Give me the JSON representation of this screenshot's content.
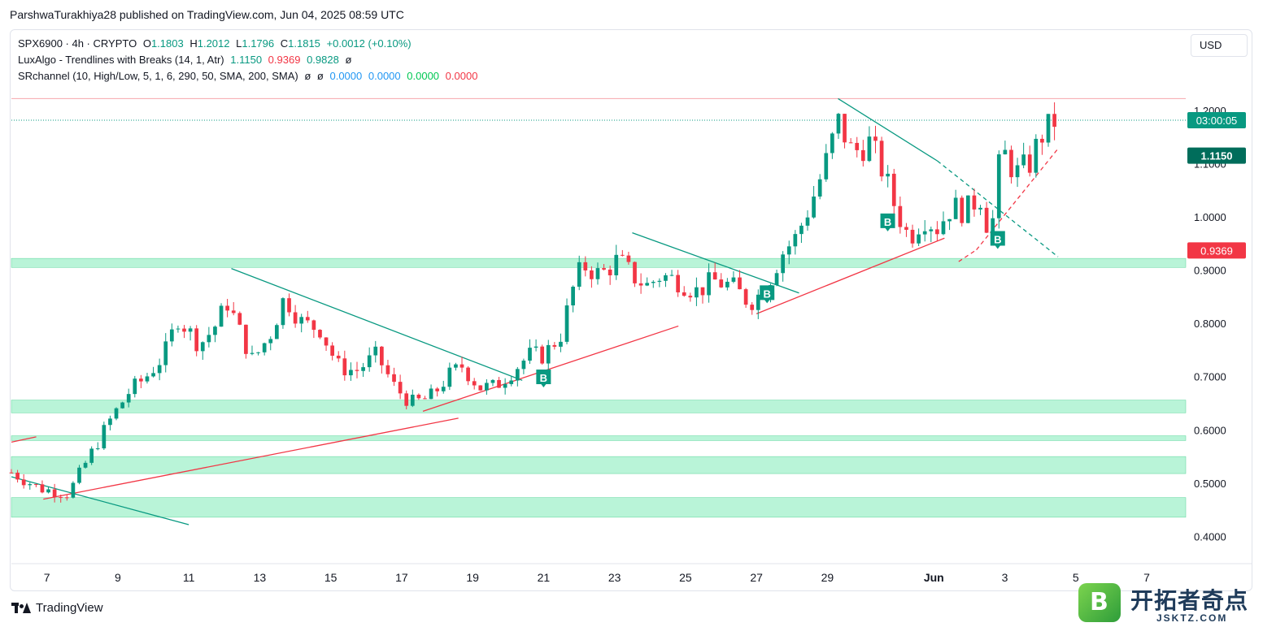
{
  "caption": "ParshwaTurakhiya28 published on TradingView.com, Jun 04, 2025 08:59 UTC",
  "legend": {
    "symbol": "SPX6900 · 4h · CRYPTO",
    "o_label": "O",
    "o": "1.1803",
    "h_label": "H",
    "h": "1.2012",
    "l_label": "L",
    "l": "1.1796",
    "c_label": "C",
    "c": "1.1815",
    "change": "+0.0012 (+0.10%)",
    "ind1_name": "LuxAlgo - Trendlines with Breaks (14, 1, Atr)",
    "ind1_v1": "1.1150",
    "ind1_v2": "0.9369",
    "ind1_v3": "0.9828",
    "ind1_v4": "ø",
    "ind2_name": "SRchannel (10, High/Low, 5, 1, 6, 290, 50, SMA, 200, SMA)",
    "ind2_v1": "ø",
    "ind2_v2": "ø",
    "ind2_v3": "0.0000",
    "ind2_v4": "0.0000",
    "ind2_v5": "0.0000",
    "ind2_v6": "0.0000"
  },
  "currency_button": "USD",
  "price_tags": {
    "countdown": "03:00:05",
    "upper_trendline": "1.1150",
    "lower_trendline": "0.9369"
  },
  "brand": "TradingView",
  "watermark": {
    "letter": "B",
    "title": "开拓者奇点",
    "url": "JSKTZ.COM"
  },
  "colors": {
    "up": "#089981",
    "down": "#f23645",
    "zone": "#b9f4d8",
    "zone_border": "#5ad59a",
    "upper_trend": "#089981",
    "lower_trend": "#f23645"
  },
  "chart_data": {
    "type": "candlestick",
    "symbol": "SPX6900",
    "timeframe": "4h",
    "y_ticks": [
      "1.2000",
      "1.1000",
      "1.0000",
      "0.9000",
      "0.8000",
      "0.7000",
      "0.6000",
      "0.5000",
      "0.4000"
    ],
    "ylim": [
      0.355,
      1.34
    ],
    "x_ticks": [
      "7",
      "9",
      "11",
      "13",
      "15",
      "17",
      "19",
      "21",
      "23",
      "25",
      "27",
      "29",
      "Jun",
      "3",
      "5",
      "7"
    ],
    "x_tick_days": [
      7,
      9,
      11,
      13,
      15,
      17,
      19,
      21,
      23,
      25,
      27,
      29,
      32,
      34,
      36,
      38
    ],
    "x_domain_days": [
      6.0,
      39.1
    ],
    "last_price": 1.1815,
    "support_resistance_zones": [
      [
        0.905,
        0.922
      ],
      [
        0.632,
        0.656
      ],
      [
        0.58,
        0.589
      ],
      [
        0.518,
        0.55
      ],
      [
        0.436,
        0.473
      ]
    ],
    "resistance_line": 1.222,
    "buy_signals": [
      {
        "label": "B",
        "day": 21.0,
        "price": 0.695
      },
      {
        "label": "B",
        "day": 27.3,
        "price": 0.853
      },
      {
        "label": "B",
        "day": 30.7,
        "price": 0.988
      },
      {
        "label": "B",
        "day": 33.8,
        "price": 0.955
      }
    ],
    "downtrend_lines": [
      {
        "from": [
          6.0,
          0.512
        ],
        "to": [
          11.0,
          0.422
        ],
        "style": "solid"
      },
      {
        "from": [
          12.2,
          0.903
        ],
        "to": [
          20.4,
          0.693
        ],
        "style": "solid"
      },
      {
        "from": [
          23.5,
          0.97
        ],
        "to": [
          28.2,
          0.857
        ],
        "style": "solid"
      },
      {
        "from": [
          29.3,
          1.222
        ],
        "to": [
          32.1,
          1.105
        ],
        "style": "solid"
      },
      {
        "from": [
          32.1,
          1.105
        ],
        "to": [
          35.5,
          0.925
        ],
        "style": "dashed"
      }
    ],
    "uptrend_lines": [
      {
        "from": [
          6.0,
          0.577
        ],
        "to": [
          6.7,
          0.587
        ],
        "style": "solid"
      },
      {
        "from": [
          6.9,
          0.47
        ],
        "to": [
          18.6,
          0.622
        ],
        "style": "solid"
      },
      {
        "from": [
          17.6,
          0.635
        ],
        "to": [
          24.8,
          0.795
        ],
        "style": "solid"
      },
      {
        "from": [
          27.0,
          0.818
        ],
        "to": [
          32.3,
          0.96
        ],
        "style": "solid"
      },
      {
        "from": [
          32.7,
          0.916
        ],
        "to": [
          33.2,
          0.938
        ],
        "style": "dashed"
      },
      {
        "from": [
          33.2,
          0.938
        ],
        "to": [
          35.5,
          1.128
        ],
        "style": "dashed"
      }
    ],
    "candle_count": 170,
    "ohlc_anchors": [
      [
        6.0,
        0.52
      ],
      [
        6.8,
        0.49
      ],
      [
        7.6,
        0.48
      ],
      [
        8.2,
        0.55
      ],
      [
        8.8,
        0.62
      ],
      [
        9.3,
        0.67
      ],
      [
        9.8,
        0.7
      ],
      [
        10.3,
        0.74
      ],
      [
        10.7,
        0.81
      ],
      [
        11.3,
        0.76
      ],
      [
        11.7,
        0.79
      ],
      [
        12.1,
        0.84
      ],
      [
        12.4,
        0.79
      ],
      [
        12.8,
        0.73
      ],
      [
        13.3,
        0.78
      ],
      [
        13.7,
        0.85
      ],
      [
        14.2,
        0.8
      ],
      [
        14.7,
        0.79
      ],
      [
        15.2,
        0.72
      ],
      [
        15.7,
        0.71
      ],
      [
        16.3,
        0.74
      ],
      [
        16.8,
        0.68
      ],
      [
        17.3,
        0.65
      ],
      [
        17.8,
        0.66
      ],
      [
        18.3,
        0.7
      ],
      [
        18.7,
        0.72
      ],
      [
        19.2,
        0.68
      ],
      [
        19.6,
        0.68
      ],
      [
        20.1,
        0.71
      ],
      [
        20.6,
        0.74
      ],
      [
        21.0,
        0.74
      ],
      [
        21.5,
        0.78
      ],
      [
        21.8,
        0.86
      ],
      [
        22.1,
        0.91
      ],
      [
        22.6,
        0.89
      ],
      [
        23.1,
        0.92
      ],
      [
        23.5,
        0.89
      ],
      [
        23.9,
        0.87
      ],
      [
        24.3,
        0.89
      ],
      [
        24.8,
        0.88
      ],
      [
        25.3,
        0.86
      ],
      [
        25.8,
        0.88
      ],
      [
        26.3,
        0.87
      ],
      [
        26.8,
        0.84
      ],
      [
        27.2,
        0.86
      ],
      [
        27.7,
        0.93
      ],
      [
        28.1,
        0.96
      ],
      [
        28.5,
        1.02
      ],
      [
        28.9,
        1.09
      ],
      [
        29.3,
        1.18
      ],
      [
        29.7,
        1.12
      ],
      [
        30.2,
        1.14
      ],
      [
        30.6,
        1.08
      ],
      [
        30.9,
        1.02
      ],
      [
        31.3,
        0.96
      ],
      [
        31.7,
        1.0
      ],
      [
        32.1,
        0.98
      ],
      [
        32.5,
        1.02
      ],
      [
        32.9,
        1.01
      ],
      [
        33.3,
        1.04
      ],
      [
        33.6,
        0.96
      ],
      [
        33.9,
        1.13
      ],
      [
        34.3,
        1.08
      ],
      [
        34.7,
        1.1
      ],
      [
        35.0,
        1.15
      ],
      [
        35.4,
        1.18
      ]
    ]
  }
}
